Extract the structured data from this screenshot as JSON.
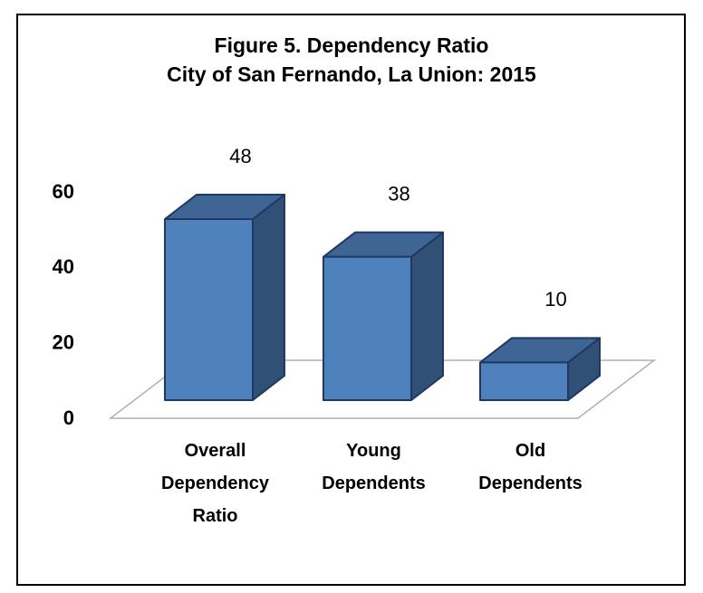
{
  "chart_data": {
    "type": "bar3d",
    "title": "Figure 5. Dependency Ratio",
    "subtitle": "City of San Fernando, La Union: 2015",
    "categories": [
      "Overall Dependency Ratio",
      "Young Dependents",
      "Old Dependents"
    ],
    "values": [
      48,
      38,
      10
    ],
    "color": "#4f81bd",
    "ylim": [
      0,
      60
    ],
    "yticks": [
      0,
      20,
      40,
      60
    ]
  }
}
